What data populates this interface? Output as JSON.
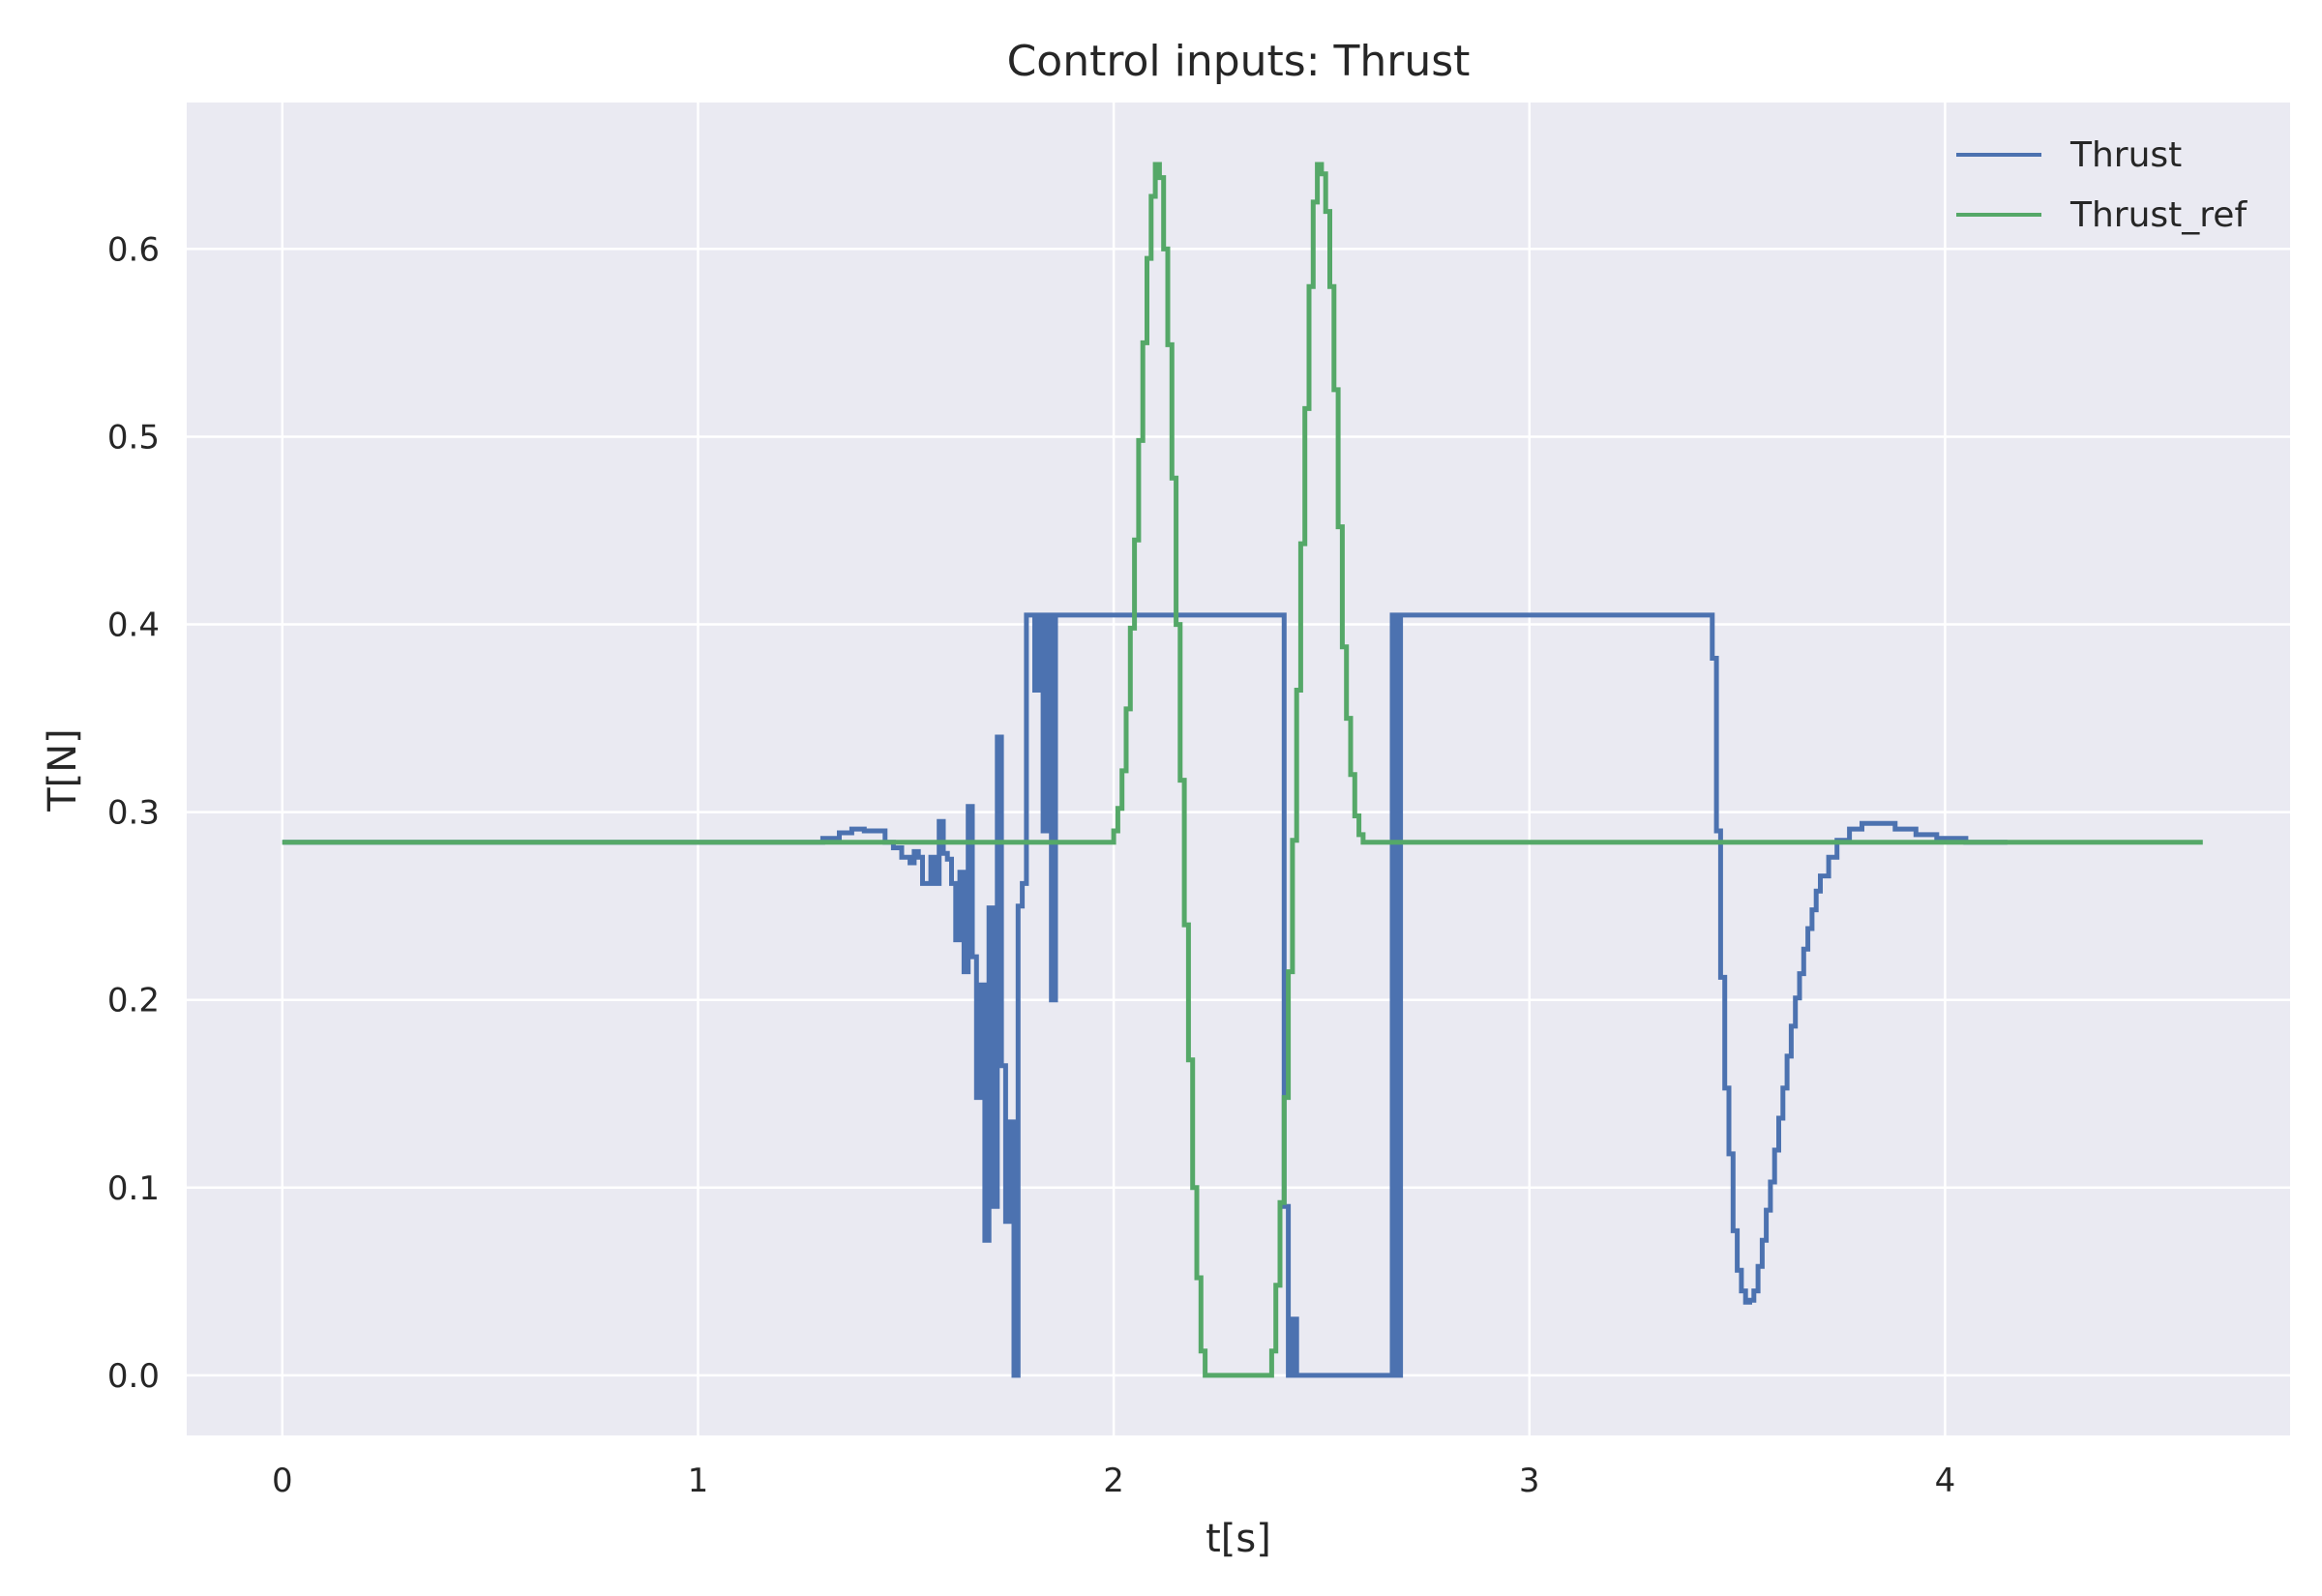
{
  "chart_data": {
    "type": "line",
    "title": "Control inputs: Thrust",
    "xlabel": "t[s]",
    "ylabel": "T[N]",
    "xlim": [
      -0.23,
      4.83
    ],
    "ylim": [
      -0.032,
      0.678
    ],
    "xticks": [
      0,
      1,
      2,
      3,
      4
    ],
    "yticks": [
      0.0,
      0.1,
      0.2,
      0.3,
      0.4,
      0.5,
      0.6
    ],
    "ytick_labels": [
      "0.0",
      "0.1",
      "0.2",
      "0.3",
      "0.4",
      "0.5",
      "0.6"
    ],
    "grid": true,
    "legend_position": "top-right",
    "colors": {
      "background": "#EAEAF2",
      "grid": "#FFFFFF",
      "Thrust": "#4C72B0",
      "Thrust_ref": "#55A868"
    },
    "series": [
      {
        "name": "Thrust",
        "color": "#4C72B0",
        "step": true,
        "x": [
          0.0,
          1.3,
          1.34,
          1.37,
          1.4,
          1.45,
          1.47,
          1.49,
          1.51,
          1.52,
          1.53,
          1.54,
          1.56,
          1.57,
          1.58,
          1.59,
          1.6,
          1.61,
          1.62,
          1.63,
          1.64,
          1.65,
          1.66,
          1.67,
          1.68,
          1.69,
          1.7,
          1.71,
          1.72,
          1.73,
          1.74,
          1.75,
          1.76,
          1.77,
          1.78,
          1.79,
          1.8,
          1.81,
          1.82,
          1.83,
          1.84,
          1.85,
          1.86,
          1.87,
          1.88,
          1.89,
          1.9,
          1.91,
          1.92,
          2.41,
          2.42,
          2.43,
          2.44,
          2.67,
          2.68,
          2.69,
          2.7,
          3.44,
          3.45,
          3.46,
          3.47,
          3.48,
          3.49,
          3.5,
          3.51,
          3.52,
          3.53,
          3.54,
          3.55,
          3.56,
          3.57,
          3.58,
          3.59,
          3.6,
          3.61,
          3.62,
          3.63,
          3.64,
          3.65,
          3.66,
          3.67,
          3.68,
          3.69,
          3.7,
          3.72,
          3.74,
          3.77,
          3.8,
          3.84,
          3.88,
          3.93,
          3.98,
          4.05,
          4.15
        ],
        "y": [
          0.284,
          0.286,
          0.289,
          0.291,
          0.29,
          0.284,
          0.281,
          0.276,
          0.273,
          0.279,
          0.276,
          0.262,
          0.276,
          0.262,
          0.295,
          0.278,
          0.275,
          0.262,
          0.232,
          0.268,
          0.215,
          0.303,
          0.223,
          0.148,
          0.208,
          0.072,
          0.249,
          0.09,
          0.34,
          0.165,
          0.082,
          0.135,
          0.0,
          0.25,
          0.262,
          0.405,
          0.405,
          0.365,
          0.405,
          0.29,
          0.405,
          0.2,
          0.405,
          0.405,
          0.405,
          0.405,
          0.405,
          0.405,
          0.405,
          0.09,
          0.0,
          0.03,
          0.0,
          0.405,
          0.0,
          0.405,
          0.405,
          0.382,
          0.29,
          0.212,
          0.153,
          0.118,
          0.077,
          0.056,
          0.045,
          0.039,
          0.04,
          0.045,
          0.058,
          0.072,
          0.088,
          0.103,
          0.12,
          0.137,
          0.153,
          0.17,
          0.186,
          0.201,
          0.214,
          0.227,
          0.238,
          0.248,
          0.258,
          0.266,
          0.276,
          0.285,
          0.291,
          0.294,
          0.294,
          0.291,
          0.288,
          0.286,
          0.284,
          0.284
        ]
      },
      {
        "name": "Thrust_ref",
        "color": "#55A868",
        "step": true,
        "x": [
          0.0,
          2.0,
          2.01,
          2.02,
          2.03,
          2.04,
          2.05,
          2.06,
          2.07,
          2.08,
          2.09,
          2.1,
          2.11,
          2.12,
          2.13,
          2.14,
          2.15,
          2.16,
          2.17,
          2.18,
          2.19,
          2.2,
          2.21,
          2.22,
          2.23,
          2.24,
          2.38,
          2.39,
          2.4,
          2.41,
          2.42,
          2.43,
          2.44,
          2.45,
          2.46,
          2.47,
          2.48,
          2.49,
          2.5,
          2.51,
          2.52,
          2.53,
          2.54,
          2.55,
          2.56,
          2.57,
          2.58,
          2.59,
          2.6,
          2.61,
          2.62,
          4.62
        ],
        "y": [
          0.284,
          0.29,
          0.302,
          0.322,
          0.355,
          0.398,
          0.445,
          0.498,
          0.55,
          0.595,
          0.628,
          0.645,
          0.638,
          0.6,
          0.549,
          0.478,
          0.4,
          0.317,
          0.24,
          0.168,
          0.1,
          0.052,
          0.013,
          0.0,
          0.0,
          0.0,
          0.013,
          0.048,
          0.092,
          0.148,
          0.215,
          0.285,
          0.365,
          0.443,
          0.515,
          0.58,
          0.625,
          0.645,
          0.64,
          0.62,
          0.58,
          0.525,
          0.452,
          0.388,
          0.35,
          0.32,
          0.298,
          0.288,
          0.284,
          0.284,
          0.284,
          0.284
        ]
      }
    ]
  }
}
